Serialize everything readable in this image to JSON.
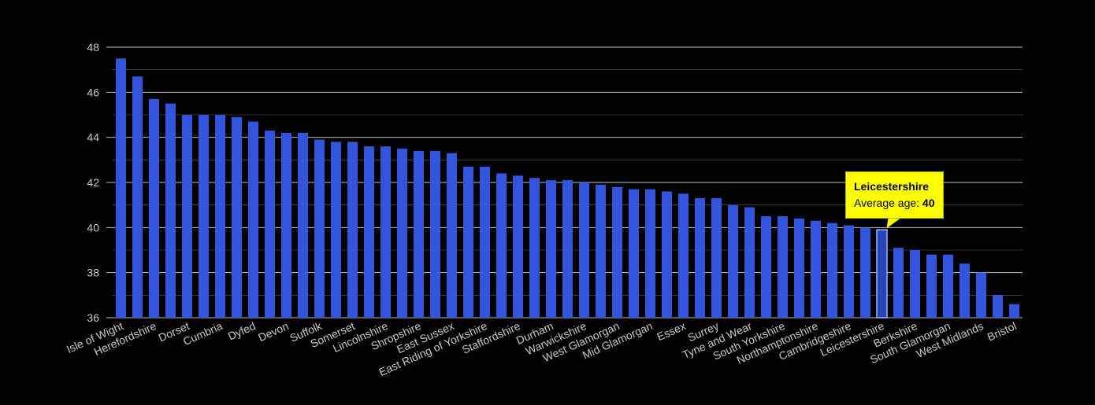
{
  "chart_data": {
    "type": "bar",
    "colors": {
      "bar": "#3355dd",
      "highlight_bar": "#2a45b8",
      "grid": "#bfbfbf",
      "background": "#000000",
      "tooltip": "#ffff00"
    },
    "ylim": [
      36,
      48
    ],
    "yticks": [
      36,
      38,
      40,
      42,
      44,
      46,
      48
    ],
    "grid": true,
    "categories": [
      "Isle of Wight",
      "",
      "Herefordshire",
      "",
      "Dorset",
      "",
      "Cumbria",
      "",
      "Dyfed",
      "",
      "Devon",
      "",
      "Suffolk",
      "",
      "Somerset",
      "",
      "Lincolnshire",
      "",
      "Shropshire",
      "",
      "East Sussex",
      "",
      "East Riding of Yorkshire",
      "",
      "Staffordshire",
      "",
      "Durham",
      "",
      "Warwickshire",
      "",
      "West Glamorgan",
      "",
      "Mid Glamorgan",
      "",
      "Essex",
      "",
      "Surrey",
      "",
      "Tyne and Wear",
      "",
      "South Yorkshire",
      "",
      "Northamptonshire",
      "",
      "Cambridgeshire",
      "",
      "Leicestershire",
      "",
      "Berkshire",
      "",
      "South Glamorgan",
      "",
      "West Midlands",
      "",
      "Bristol"
    ],
    "values": [
      47.5,
      46.7,
      45.7,
      45.5,
      45.0,
      45.0,
      45.0,
      44.9,
      44.7,
      44.3,
      44.2,
      44.2,
      43.9,
      43.8,
      43.8,
      43.6,
      43.6,
      43.5,
      43.4,
      43.4,
      43.3,
      42.7,
      42.7,
      42.4,
      42.3,
      42.2,
      42.1,
      42.1,
      42.0,
      41.9,
      41.8,
      41.7,
      41.7,
      41.6,
      41.5,
      41.3,
      41.3,
      41.0,
      40.9,
      40.5,
      40.5,
      40.4,
      40.3,
      40.2,
      40.1,
      40.0,
      39.9,
      39.1,
      39.0,
      38.8,
      38.8,
      38.4,
      38.0,
      37.0,
      36.6
    ],
    "highlight_index": 46,
    "tooltip": {
      "title": "Leicestershire",
      "label": "Average age:",
      "value": "40"
    }
  }
}
